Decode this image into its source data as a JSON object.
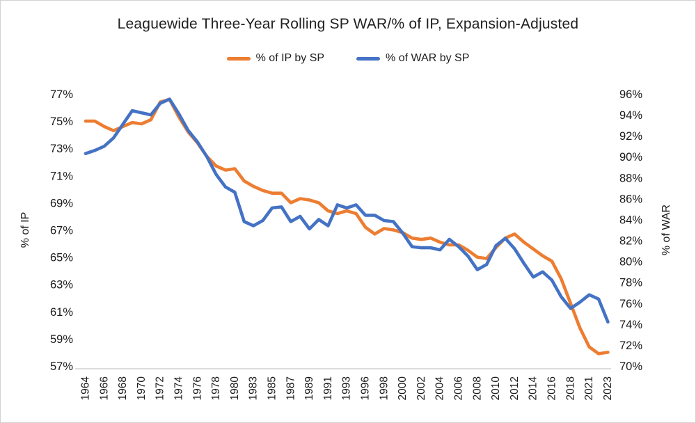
{
  "frame": {
    "title": "Leaguewide Three-Year Rolling SP WAR/% of IP, Expansion-Adjusted"
  },
  "legend": [
    {
      "label": "% of IP by SP",
      "color": "#ED7D31"
    },
    {
      "label": "% of WAR by SP",
      "color": "#4472C4"
    }
  ],
  "chart_data": {
    "type": "line",
    "title": "Leaguewide Three-Year Rolling SP WAR/% of IP, Expansion-Adjusted",
    "grid": false,
    "legend_position": "top",
    "x": [
      "1964",
      "1965",
      "1966",
      "1967",
      "1968",
      "1969",
      "1970",
      "1971",
      "1972",
      "1973",
      "1974",
      "1975",
      "1976",
      "1977",
      "1978",
      "1979",
      "1980",
      "1982",
      "1983",
      "1984",
      "1985",
      "1986",
      "1987",
      "1988",
      "1989",
      "1990",
      "1991",
      "1992",
      "1993",
      "1995",
      "1996",
      "1997",
      "1998",
      "1999",
      "2000",
      "2001",
      "2002",
      "2003",
      "2004",
      "2005",
      "2006",
      "2007",
      "2008",
      "2009",
      "2010",
      "2011",
      "2012",
      "2013",
      "2014",
      "2015",
      "2016",
      "2017",
      "2018",
      "2019",
      "2021",
      "2022",
      "2023"
    ],
    "x_tick_labels": [
      "1964",
      "1966",
      "1968",
      "1970",
      "1972",
      "1974",
      "1976",
      "1978",
      "1980",
      "1983",
      "1985",
      "1987",
      "1989",
      "1991",
      "1993",
      "1996",
      "1998",
      "2000",
      "2002",
      "2004",
      "2006",
      "2008",
      "2010",
      "2012",
      "2014",
      "2016",
      "2018",
      "2021",
      "2023"
    ],
    "series": [
      {
        "name": "% of IP by SP",
        "axis": "left",
        "color": "#ED7D31",
        "values": [
          75.0,
          75.0,
          74.6,
          74.3,
          74.6,
          74.9,
          74.8,
          75.1,
          76.4,
          76.6,
          75.3,
          74.2,
          73.4,
          72.4,
          71.7,
          71.4,
          71.5,
          70.6,
          70.2,
          69.9,
          69.7,
          69.7,
          69.0,
          69.3,
          69.2,
          69.0,
          68.4,
          68.2,
          68.4,
          68.2,
          67.2,
          66.7,
          67.1,
          67.0,
          66.8,
          66.4,
          66.3,
          66.4,
          66.1,
          65.9,
          65.9,
          65.5,
          65.0,
          64.9,
          65.7,
          66.4,
          66.7,
          66.1,
          65.6,
          65.1,
          64.7,
          63.4,
          61.6,
          59.8,
          58.4,
          57.9,
          58.0
        ]
      },
      {
        "name": "% of WAR by SP",
        "axis": "right",
        "color": "#4472C4",
        "values": [
          90.3,
          90.6,
          91.0,
          91.8,
          93.1,
          94.4,
          94.2,
          94.0,
          95.1,
          95.5,
          94.1,
          92.5,
          91.4,
          90.0,
          88.3,
          87.1,
          86.6,
          83.8,
          83.4,
          83.9,
          85.1,
          85.2,
          83.8,
          84.3,
          83.1,
          84.0,
          83.4,
          85.4,
          85.1,
          85.4,
          84.4,
          84.4,
          83.9,
          83.8,
          82.7,
          81.4,
          81.3,
          81.3,
          81.1,
          82.1,
          81.4,
          80.5,
          79.2,
          79.7,
          81.5,
          82.2,
          81.2,
          79.8,
          78.5,
          79.0,
          78.2,
          76.6,
          75.5,
          76.1,
          76.8,
          76.4,
          74.2
        ]
      }
    ],
    "left_axis": {
      "title": "% of IP",
      "min": 57,
      "max": 77,
      "tick_step": 2,
      "tick_labels": [
        "77%",
        "75%",
        "73%",
        "71%",
        "69%",
        "67%",
        "65%",
        "63%",
        "61%",
        "59%",
        "57%"
      ]
    },
    "right_axis": {
      "title": "% of WAR",
      "min": 70,
      "max": 96,
      "tick_step": 2,
      "tick_labels": [
        "96%",
        "94%",
        "92%",
        "90%",
        "88%",
        "86%",
        "84%",
        "82%",
        "80%",
        "78%",
        "76%",
        "74%",
        "72%",
        "70%"
      ]
    }
  }
}
